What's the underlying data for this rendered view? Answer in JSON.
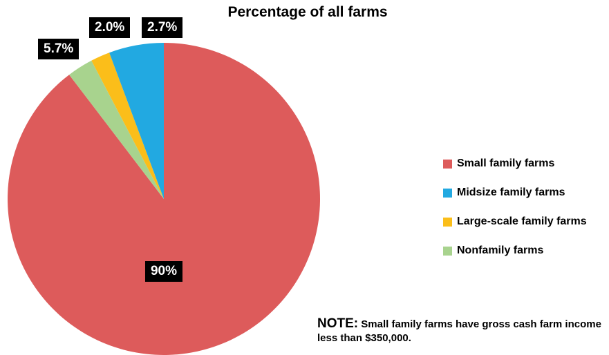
{
  "chart_data": {
    "type": "pie",
    "title": "Percentage of all farms",
    "categories": [
      "Small family farms",
      "Midsize family farms",
      "Large-scale family farms",
      "Nonfamily farms"
    ],
    "values": [
      90,
      5.7,
      2.0,
      2.7
    ],
    "data_labels": [
      "90%",
      "5.7%",
      "2.0%",
      "2.7%"
    ],
    "colors": [
      "#DD5B5B",
      "#22A9E1",
      "#FBBE1A",
      "#A8D38E"
    ],
    "start": "12 o'clock",
    "direction": "clockwise",
    "legend_position": "right"
  },
  "note": {
    "heading": "NOTE:",
    "text": "Small family farms have gross cash farm income less than $350,000."
  }
}
